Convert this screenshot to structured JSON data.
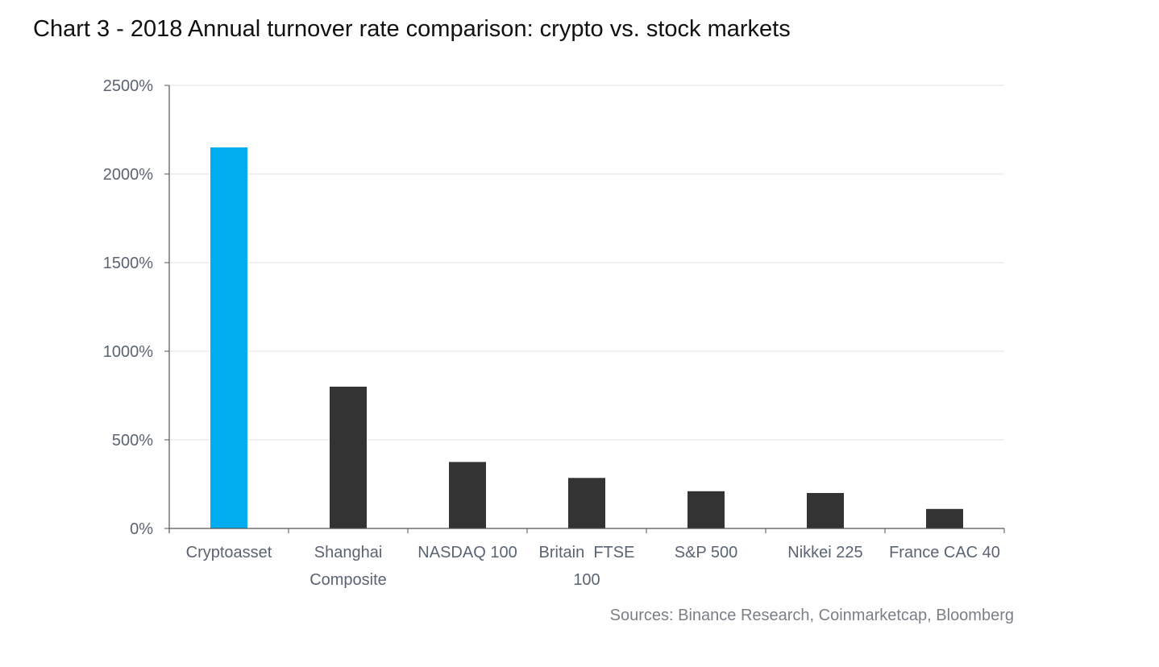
{
  "chart_data": {
    "type": "bar",
    "title": "Chart 3 - 2018 Annual turnover rate comparison: crypto vs. stock markets",
    "categories": [
      [
        "Cryptoasset"
      ],
      [
        "Shanghai",
        "Composite"
      ],
      [
        "NASDAQ 100"
      ],
      [
        "Britain  FTSE",
        "100"
      ],
      [
        "S&P 500"
      ],
      [
        "Nikkei 225"
      ],
      [
        "France CAC 40"
      ]
    ],
    "values": [
      2150,
      800,
      375,
      285,
      210,
      200,
      110
    ],
    "bar_colors": [
      "#00aeef",
      "#333333",
      "#333333",
      "#333333",
      "#333333",
      "#333333",
      "#333333"
    ],
    "xlabel": "",
    "ylabel": "",
    "ylim": [
      0,
      2500
    ],
    "yticks": [
      0,
      500,
      1000,
      1500,
      2000,
      2500
    ],
    "ytick_labels": [
      "0%",
      "500%",
      "1000%",
      "1500%",
      "2000%",
      "2500%"
    ],
    "grid": true,
    "legend": "none"
  },
  "source_note": "Sources: Binance Research, Coinmarketcap, Bloomberg"
}
